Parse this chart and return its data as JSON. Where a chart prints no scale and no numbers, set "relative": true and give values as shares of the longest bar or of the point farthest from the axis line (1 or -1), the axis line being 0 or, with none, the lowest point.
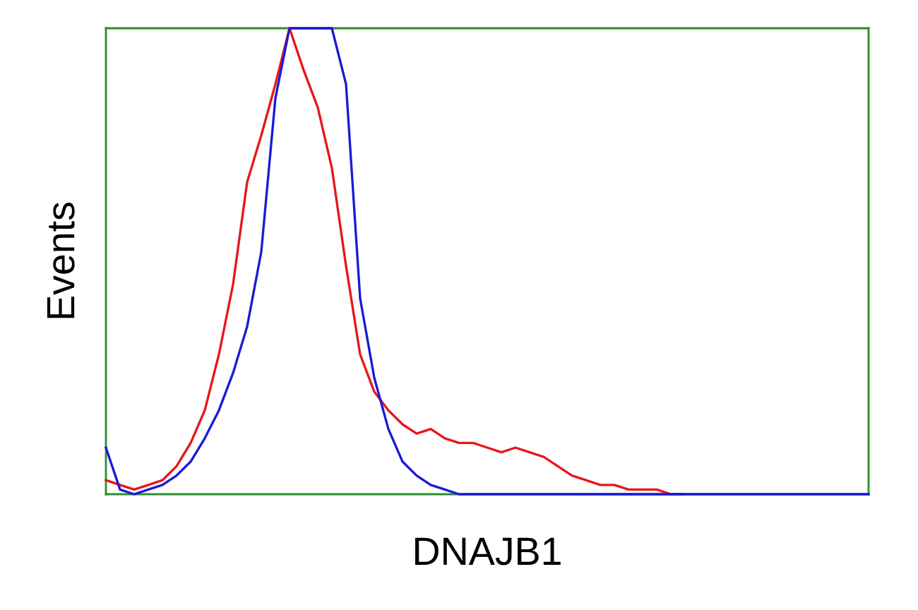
{
  "chart_data": {
    "type": "line",
    "relative": true,
    "xlabel": "DNAJB1",
    "ylabel": "Events",
    "categories": [
      null,
      null,
      null,
      null,
      null,
      null,
      null,
      null,
      null,
      null,
      null,
      null,
      null,
      null,
      null,
      null,
      null,
      null,
      null,
      null,
      null,
      null,
      null,
      null,
      null,
      null,
      null,
      null,
      null,
      null,
      null,
      null,
      null,
      null,
      null,
      null,
      null,
      null,
      null,
      null,
      null,
      null,
      null,
      null,
      null,
      null,
      null,
      null,
      null,
      null,
      null,
      null,
      null,
      null,
      null
    ],
    "series": [
      {
        "color": "#e8161b",
        "values": [
          0.03,
          0.02,
          0.01,
          0.02,
          0.03,
          0.06,
          0.11,
          0.18,
          0.3,
          0.45,
          0.67,
          0.77,
          0.88,
          1.0,
          0.91,
          0.83,
          0.7,
          0.49,
          0.3,
          0.22,
          0.18,
          0.15,
          0.13,
          0.14,
          0.12,
          0.11,
          0.11,
          0.1,
          0.09,
          0.1,
          0.09,
          0.08,
          0.06,
          0.04,
          0.03,
          0.02,
          0.02,
          0.01,
          0.01,
          0.01,
          0,
          0,
          null,
          null,
          null,
          null,
          null,
          null,
          null,
          null,
          null,
          null,
          null,
          null,
          null
        ]
      },
      {
        "color": "#1a1ad6",
        "values": [
          0.1,
          0.01,
          0,
          0.01,
          0.02,
          0.04,
          0.07,
          0.12,
          0.18,
          0.26,
          0.36,
          0.52,
          0.85,
          1.0,
          1.0,
          1.0,
          1.0,
          0.88,
          0.42,
          0.25,
          0.14,
          0.07,
          0.04,
          0.02,
          0.01,
          0,
          0,
          0,
          0,
          0,
          0,
          0,
          0,
          0,
          0,
          0,
          0,
          0,
          0,
          0,
          0,
          0,
          0,
          0,
          0,
          0,
          0,
          0,
          0,
          0,
          0,
          0,
          0,
          0,
          0
        ]
      }
    ],
    "grid": false
  }
}
